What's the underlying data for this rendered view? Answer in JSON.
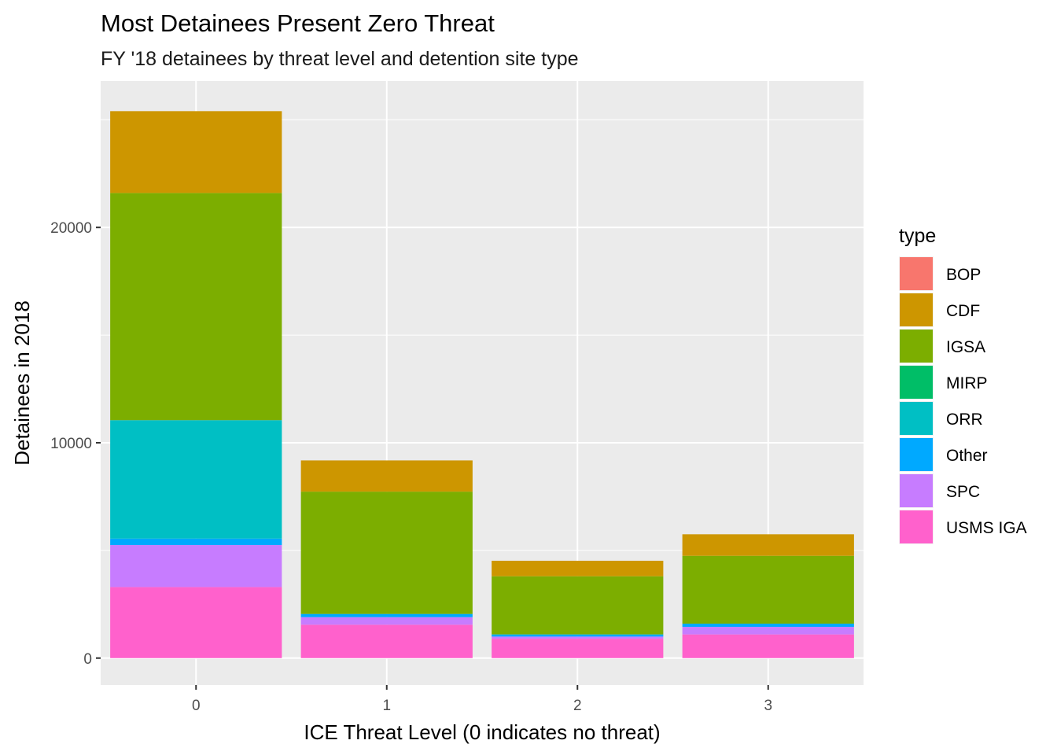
{
  "chart_data": {
    "type": "bar",
    "stacked": true,
    "title": "Most Detainees Present Zero Threat",
    "subtitle": "FY '18 detainees by threat level and detention site type",
    "xlabel": "ICE Threat Level (0 indicates no threat)",
    "ylabel": "Detainees in 2018",
    "categories": [
      "0",
      "1",
      "2",
      "3"
    ],
    "ylim": [
      -1250,
      26800
    ],
    "yticks": [
      0,
      10000,
      20000
    ],
    "ytick_labels": [
      "0",
      "10000",
      "20000"
    ],
    "grid": true,
    "legend_title": "type",
    "legend_position": "right",
    "series": [
      {
        "name": "BOP",
        "color": "#F8766D",
        "values": [
          0,
          0,
          0,
          0
        ]
      },
      {
        "name": "CDF",
        "color": "#CD9600",
        "values": [
          3800,
          1450,
          720,
          1000
        ]
      },
      {
        "name": "IGSA",
        "color": "#7CAE00",
        "values": [
          10550,
          5680,
          2700,
          3150
        ]
      },
      {
        "name": "MIRP",
        "color": "#00BE67",
        "values": [
          0,
          0,
          0,
          0
        ]
      },
      {
        "name": "ORR",
        "color": "#00BFC4",
        "values": [
          5500,
          0,
          0,
          0
        ]
      },
      {
        "name": "Other",
        "color": "#00A9FF",
        "values": [
          300,
          150,
          100,
          150
        ]
      },
      {
        "name": "SPC",
        "color": "#C77CFF",
        "values": [
          1950,
          350,
          100,
          350
        ]
      },
      {
        "name": "USMS IGA",
        "color": "#FF61CC",
        "values": [
          3300,
          1550,
          900,
          1100
        ]
      }
    ]
  }
}
